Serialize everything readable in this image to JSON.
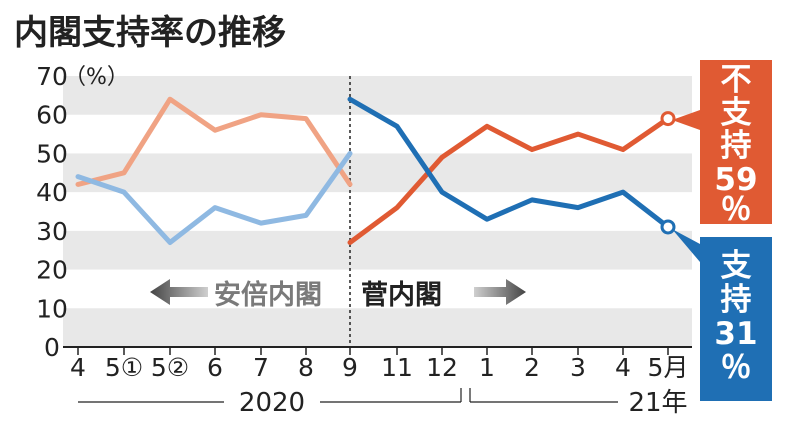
{
  "chart_data": {
    "type": "line",
    "title": "内閣支持率の推移",
    "y_unit": "（%）",
    "ylim": [
      0,
      70
    ],
    "yticks": [
      0,
      10,
      20,
      30,
      40,
      50,
      60,
      70
    ],
    "categories": [
      "4",
      "5①",
      "5②",
      "6",
      "7",
      "8",
      "9",
      "11",
      "12",
      "1",
      "2",
      "3",
      "4",
      "5月"
    ],
    "year_labels": [
      "2020",
      "21年"
    ],
    "era_labels": [
      "安倍内閣",
      "菅内閣"
    ],
    "grid": "horizontal bands",
    "series": [
      {
        "name": "不支持",
        "color": "#e05a33",
        "fade_color": "#f0a384",
        "end_label": "59％",
        "abe": [
          42,
          45,
          64,
          56,
          60,
          59,
          42
        ],
        "suga": [
          27,
          36,
          49,
          57,
          51,
          55,
          51,
          59
        ]
      },
      {
        "name": "支持",
        "color": "#1f6fb4",
        "fade_color": "#8fb9e2",
        "end_label": "31％",
        "abe": [
          44,
          40,
          27,
          36,
          32,
          34,
          50
        ],
        "suga": [
          64,
          57,
          40,
          33,
          38,
          36,
          40,
          31
        ]
      }
    ]
  },
  "colors": {
    "band": "#e8e8e8",
    "arrow": "#6e6e6e",
    "axis": "#222222"
  }
}
